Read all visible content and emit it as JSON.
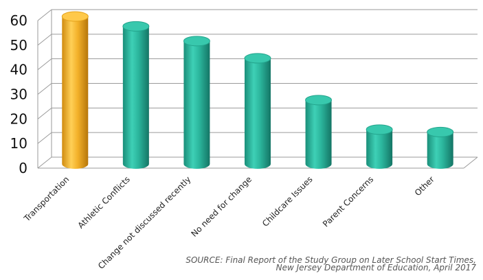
{
  "chart_data": {
    "type": "bar",
    "title": "",
    "xlabel": "",
    "ylabel": "",
    "ylim": [
      0,
      60
    ],
    "yticks": [
      0,
      10,
      20,
      30,
      40,
      50,
      60
    ],
    "grid": true,
    "style": "3d-cylinder",
    "categories": [
      "Transportation",
      "Athletic Conflicts",
      "Change not discussed recently",
      "No need for change",
      "Childcare Issues",
      "Parent Concerns",
      "Other"
    ],
    "values": [
      60,
      56,
      50,
      43,
      26,
      14,
      13
    ],
    "colors": [
      "#f3b12a",
      "#2bb59c",
      "#2bb59c",
      "#2bb59c",
      "#2bb59c",
      "#2bb59c",
      "#2bb59c"
    ]
  },
  "source": {
    "line1": "SOURCE: Final Report of the Study Group on Later School Start Times,",
    "line2": "New Jersey Department of Education, April 2017"
  }
}
